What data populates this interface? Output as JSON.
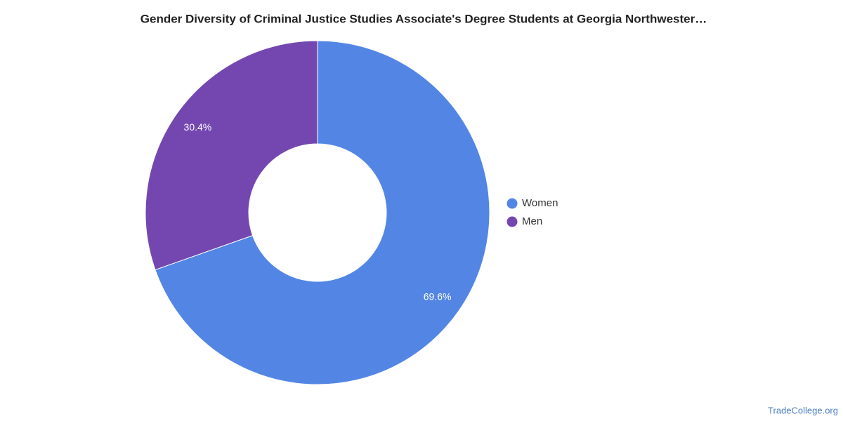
{
  "chart_data": {
    "type": "donut",
    "title": "Gender Diversity of Criminal Justice Studies Associate's Degree Students at Georgia Northwester…",
    "categories": [
      "Women",
      "Men"
    ],
    "values": [
      69.6,
      30.4
    ],
    "value_labels": [
      "69.6%",
      "30.4%"
    ],
    "colors": [
      "#5386e4",
      "#7447b0"
    ],
    "legend": "right",
    "credit": "TradeCollege.org"
  }
}
